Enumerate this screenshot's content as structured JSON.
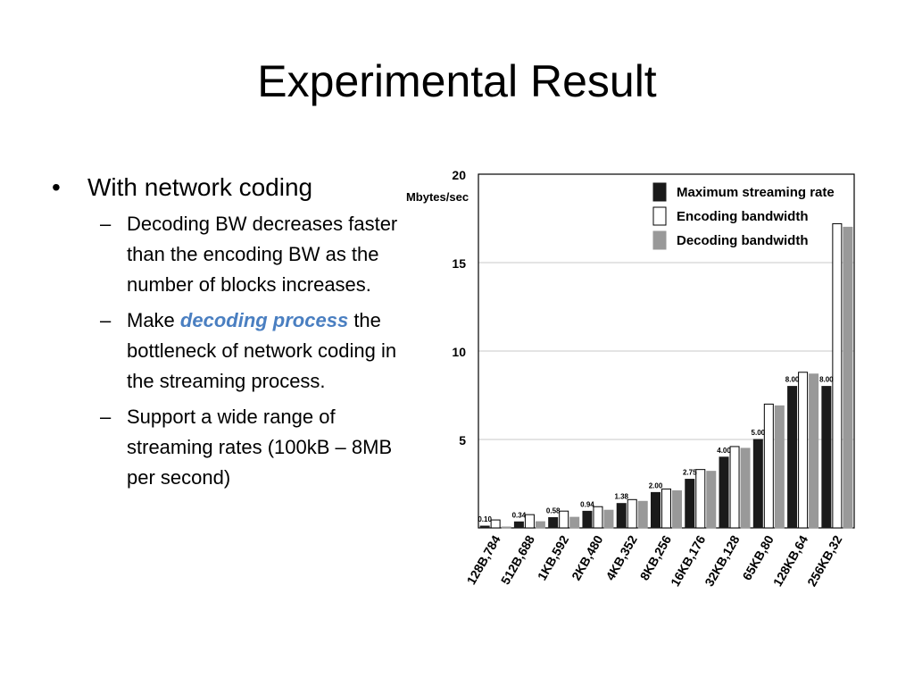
{
  "slide": {
    "title": "Experimental Result",
    "bullet_main": "With network coding",
    "sub_bullets": [
      {
        "text": "Decoding BW decreases faster than the encoding BW as the number of blocks increases."
      },
      {
        "pre": "Make ",
        "emph": "decoding process",
        "post": " the bottleneck of network coding in the streaming process."
      },
      {
        "text": "Support a wide range of streaming rates (100kB – 8MB per second)"
      }
    ],
    "bullet_symbol": "•",
    "dash_symbol": "–"
  },
  "chart_data": {
    "type": "bar",
    "ylabel": "Mbytes/sec",
    "ylim": [
      0,
      20
    ],
    "yticks": [
      "5",
      "10",
      "15",
      "20"
    ],
    "ytick_values": [
      5,
      10,
      15,
      20
    ],
    "grid": true,
    "legend_position": "top-right",
    "categories": [
      "128B,784",
      "512B,688",
      "1KB,592",
      "2KB,480",
      "4KB,352",
      "8KB,256",
      "16KB,176",
      "32KB,128",
      "65KB,80",
      "128KB,64",
      "256KB,32"
    ],
    "series": [
      {
        "name": "Maximum streaming rate",
        "color": "#1a1a1a",
        "values": [
          0.1,
          0.34,
          0.58,
          0.94,
          1.38,
          2.0,
          2.75,
          4.0,
          5.0,
          8.0,
          8.0
        ]
      },
      {
        "name": "Encoding bandwidth",
        "color": "#ffffff",
        "values": [
          0.45,
          0.75,
          0.95,
          1.2,
          1.6,
          2.2,
          3.3,
          4.6,
          7.0,
          8.8,
          17.2
        ]
      },
      {
        "name": "Decoding bandwidth",
        "color": "#999999",
        "values": [
          0.05,
          0.35,
          0.6,
          1.0,
          1.5,
          2.1,
          3.2,
          4.5,
          6.9,
          8.7,
          17.0
        ]
      }
    ],
    "data_labels": [
      "0.10",
      "0.34",
      "0.58",
      "0.94",
      "1.38",
      "2.00",
      "2.75",
      "4.00",
      "5.00",
      "8.00",
      "8.00"
    ]
  }
}
